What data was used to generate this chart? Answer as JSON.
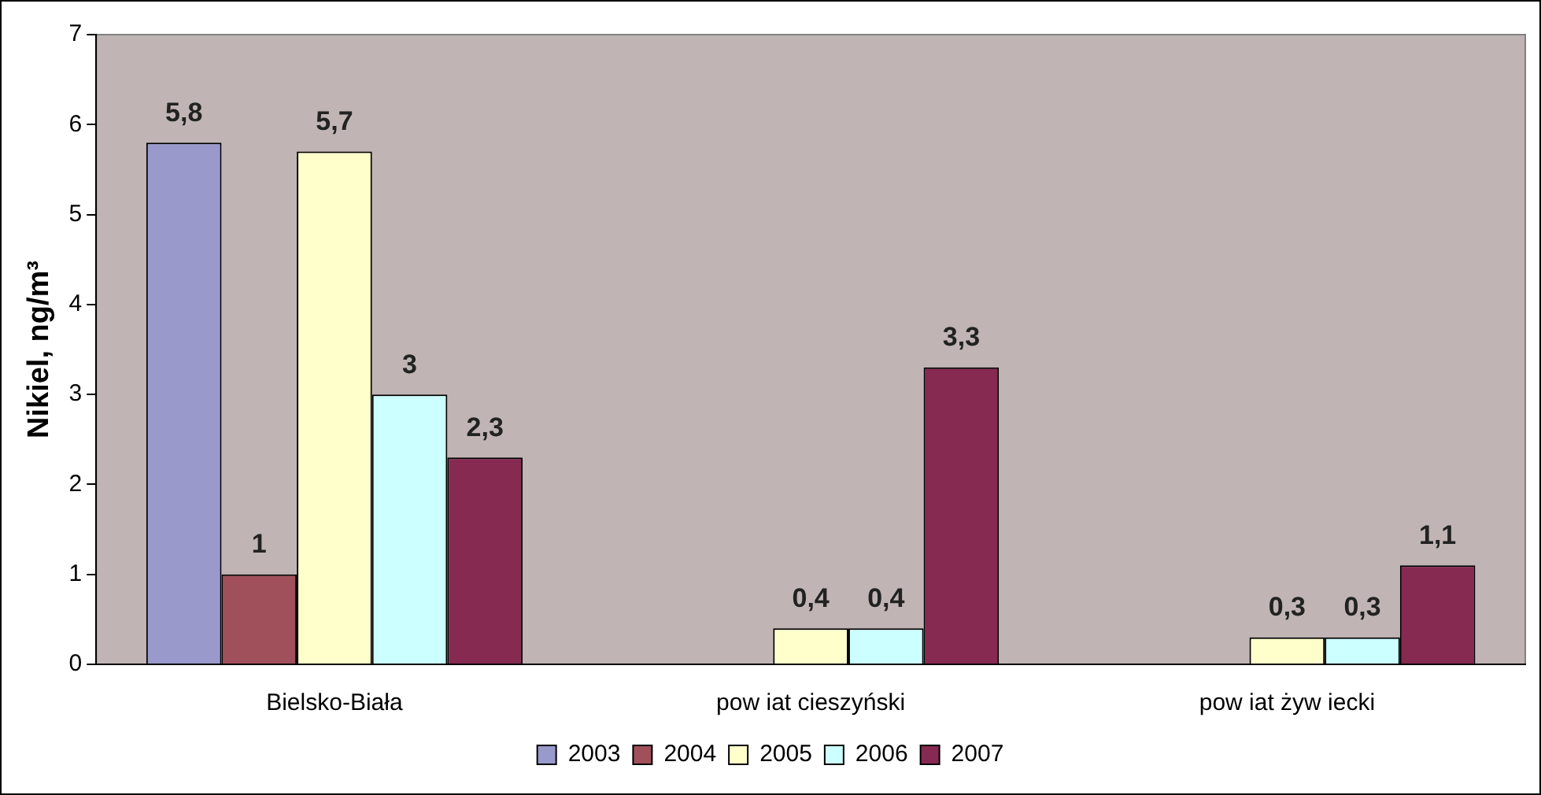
{
  "chart_data": {
    "type": "bar",
    "ylabel": "Nikiel, ng/m³",
    "categories": [
      "Bielsko-Biała",
      "pow iat cieszyński",
      "pow iat żyw iecki"
    ],
    "series": [
      {
        "name": "2003",
        "color": "#9999cc",
        "values": [
          5.8,
          null,
          null
        ],
        "value_labels": [
          "5,8",
          null,
          null
        ]
      },
      {
        "name": "2004",
        "color": "#a0505a",
        "values": [
          1,
          null,
          null
        ],
        "value_labels": [
          "1",
          null,
          null
        ]
      },
      {
        "name": "2005",
        "color": "#ffffcc",
        "values": [
          5.7,
          0.4,
          0.3
        ],
        "value_labels": [
          "5,7",
          "0,4",
          "0,3"
        ]
      },
      {
        "name": "2006",
        "color": "#ccffff",
        "values": [
          3,
          0.4,
          0.3
        ],
        "value_labels": [
          "3",
          "0,4",
          "0,3"
        ]
      },
      {
        "name": "2007",
        "color": "#862a51",
        "values": [
          2.3,
          3.3,
          1.1
        ],
        "value_labels": [
          "2,3",
          "3,3",
          "1,1"
        ]
      }
    ],
    "ylim": [
      0,
      7
    ],
    "yticks": [
      0,
      1,
      2,
      3,
      4,
      5,
      6,
      7
    ],
    "grid": false,
    "legend": "bottom"
  }
}
